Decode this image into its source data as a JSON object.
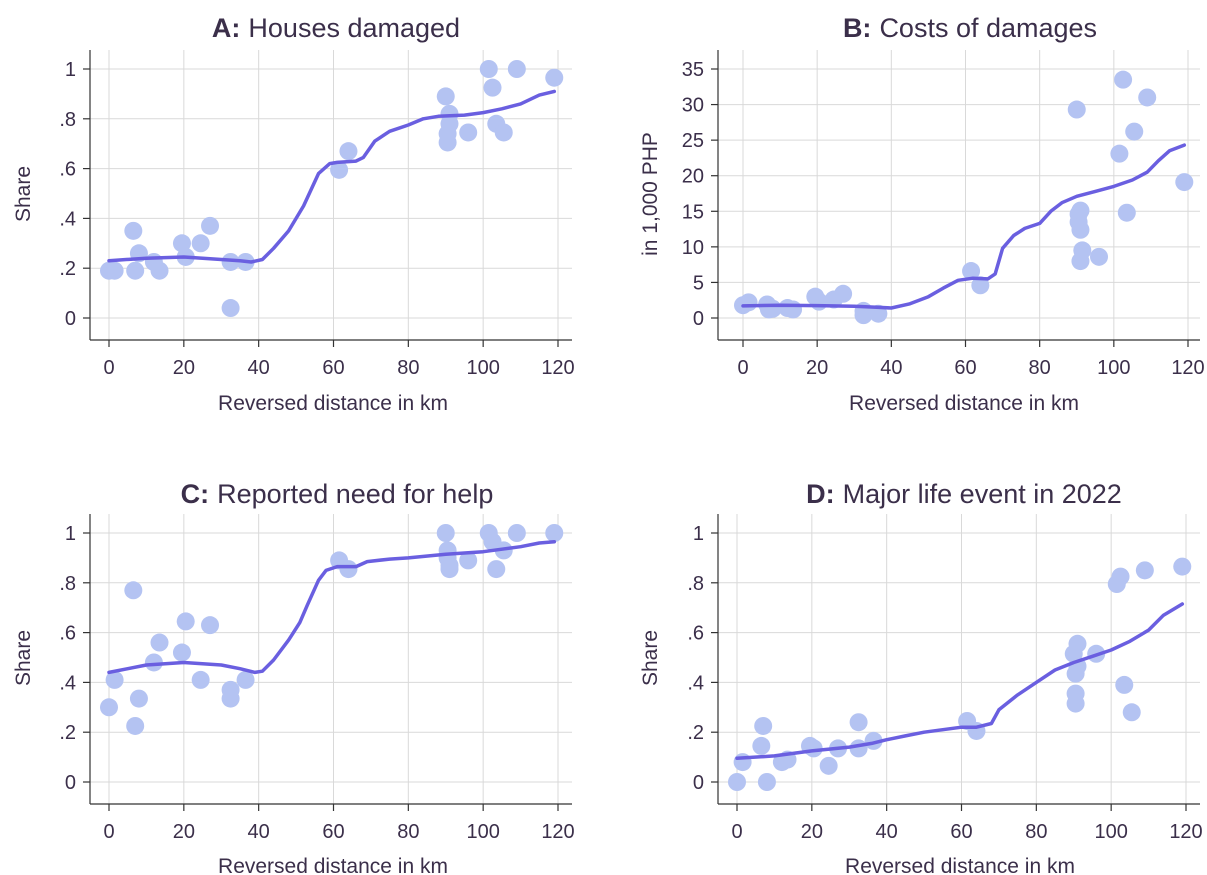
{
  "colors": {
    "marker": "#b4c3f2",
    "line": "#6a5fe0",
    "text": "#3b2f4a",
    "grid": "#d9d9d9"
  },
  "chart_data": [
    {
      "id": "A",
      "type": "scatter",
      "title_letter": "A:",
      "title_text": "Houses damaged",
      "xlabel": "Reversed distance in km",
      "ylabel": "Share",
      "xlim": [
        0,
        120
      ],
      "ylim": [
        0,
        1
      ],
      "xticks": [
        0,
        20,
        40,
        60,
        80,
        100,
        120
      ],
      "yticks": [
        0,
        0.2,
        0.4,
        0.6,
        0.8,
        1
      ],
      "ytick_labels": [
        "0",
        ".2",
        ".4",
        ".6",
        ".8",
        "1"
      ],
      "grid": true,
      "points": [
        [
          0,
          0.19
        ],
        [
          1.5,
          0.19
        ],
        [
          6.5,
          0.35
        ],
        [
          7,
          0.19
        ],
        [
          8,
          0.26
        ],
        [
          12,
          0.225
        ],
        [
          13.5,
          0.19
        ],
        [
          19.5,
          0.3
        ],
        [
          20.5,
          0.245
        ],
        [
          24.5,
          0.3
        ],
        [
          27,
          0.37
        ],
        [
          32.5,
          0.225
        ],
        [
          32.5,
          0.04
        ],
        [
          36.5,
          0.225
        ],
        [
          61.5,
          0.595
        ],
        [
          64,
          0.67
        ],
        [
          90,
          0.89
        ],
        [
          90.5,
          0.74
        ],
        [
          90.5,
          0.705
        ],
        [
          91,
          0.82
        ],
        [
          91,
          0.78
        ],
        [
          96,
          0.745
        ],
        [
          101.5,
          1.0
        ],
        [
          102.5,
          0.925
        ],
        [
          103.5,
          0.78
        ],
        [
          105.5,
          0.745
        ],
        [
          109,
          1.0
        ],
        [
          119,
          0.965
        ]
      ],
      "fit_line": [
        [
          0,
          0.23
        ],
        [
          10,
          0.24
        ],
        [
          20,
          0.245
        ],
        [
          30,
          0.235
        ],
        [
          35,
          0.23
        ],
        [
          38,
          0.225
        ],
        [
          41,
          0.235
        ],
        [
          44,
          0.28
        ],
        [
          48,
          0.35
        ],
        [
          52,
          0.45
        ],
        [
          56,
          0.58
        ],
        [
          59,
          0.62
        ],
        [
          61,
          0.625
        ],
        [
          66,
          0.63
        ],
        [
          68,
          0.645
        ],
        [
          71,
          0.71
        ],
        [
          75,
          0.75
        ],
        [
          80,
          0.775
        ],
        [
          84,
          0.8
        ],
        [
          88,
          0.81
        ],
        [
          95,
          0.815
        ],
        [
          100,
          0.825
        ],
        [
          105,
          0.84
        ],
        [
          110,
          0.86
        ],
        [
          115,
          0.895
        ],
        [
          119,
          0.91
        ]
      ]
    },
    {
      "id": "B",
      "type": "scatter",
      "title_letter": "B:",
      "title_text": "Costs of damages",
      "xlabel": "Reversed distance in km",
      "ylabel": "in 1,000 PHP",
      "xlim": [
        0,
        120
      ],
      "ylim": [
        0,
        35
      ],
      "xticks": [
        0,
        20,
        40,
        60,
        80,
        100,
        120
      ],
      "yticks": [
        0,
        5,
        10,
        15,
        20,
        25,
        30,
        35
      ],
      "ytick_labels": [
        "0",
        "5",
        "10",
        "15",
        "20",
        "25",
        "30",
        "35"
      ],
      "grid": true,
      "points": [
        [
          0,
          1.8
        ],
        [
          1.5,
          2.2
        ],
        [
          6.5,
          1.9
        ],
        [
          7,
          1.2
        ],
        [
          8,
          1.3
        ],
        [
          12,
          1.4
        ],
        [
          13.5,
          1.2
        ],
        [
          19.5,
          3.0
        ],
        [
          20.5,
          2.3
        ],
        [
          24.5,
          2.6
        ],
        [
          27,
          3.4
        ],
        [
          32.5,
          1.0
        ],
        [
          32.5,
          0.4
        ],
        [
          36.5,
          0.6
        ],
        [
          61.5,
          6.6
        ],
        [
          64,
          4.6
        ],
        [
          90,
          29.3
        ],
        [
          90.5,
          14.6
        ],
        [
          90.5,
          13.5
        ],
        [
          91,
          12.4
        ],
        [
          91,
          15.1
        ],
        [
          91,
          8.0
        ],
        [
          91.5,
          9.5
        ],
        [
          96,
          8.6
        ],
        [
          101.5,
          23.1
        ],
        [
          102.5,
          33.5
        ],
        [
          103.5,
          14.8
        ],
        [
          105.5,
          26.2
        ],
        [
          109,
          31.0
        ],
        [
          119,
          19.1
        ]
      ],
      "fit_line": [
        [
          0,
          1.7
        ],
        [
          10,
          1.8
        ],
        [
          20,
          1.75
        ],
        [
          30,
          1.65
        ],
        [
          36,
          1.5
        ],
        [
          40,
          1.4
        ],
        [
          45,
          2.0
        ],
        [
          50,
          3.0
        ],
        [
          54,
          4.2
        ],
        [
          58,
          5.3
        ],
        [
          62,
          5.6
        ],
        [
          66,
          5.5
        ],
        [
          68,
          6.2
        ],
        [
          70,
          9.8
        ],
        [
          73,
          11.6
        ],
        [
          76,
          12.6
        ],
        [
          80,
          13.3
        ],
        [
          83,
          15.0
        ],
        [
          86,
          16.2
        ],
        [
          90,
          17.1
        ],
        [
          95,
          17.8
        ],
        [
          100,
          18.5
        ],
        [
          105,
          19.4
        ],
        [
          109,
          20.5
        ],
        [
          112,
          22.1
        ],
        [
          115,
          23.5
        ],
        [
          119,
          24.3
        ]
      ]
    },
    {
      "id": "C",
      "type": "scatter",
      "title_letter": "C:",
      "title_text": "Reported need for help",
      "xlabel": "Reversed distance in km",
      "ylabel": "Share",
      "xlim": [
        0,
        120
      ],
      "ylim": [
        0,
        1
      ],
      "xticks": [
        0,
        20,
        40,
        60,
        80,
        100,
        120
      ],
      "yticks": [
        0,
        0.2,
        0.4,
        0.6,
        0.8,
        1
      ],
      "ytick_labels": [
        "0",
        ".2",
        ".4",
        ".6",
        ".8",
        "1"
      ],
      "grid": true,
      "points": [
        [
          0,
          0.3
        ],
        [
          1.5,
          0.41
        ],
        [
          6.5,
          0.77
        ],
        [
          7,
          0.225
        ],
        [
          8,
          0.335
        ],
        [
          12,
          0.48
        ],
        [
          13.5,
          0.56
        ],
        [
          19.5,
          0.52
        ],
        [
          20.5,
          0.645
        ],
        [
          24.5,
          0.41
        ],
        [
          27,
          0.63
        ],
        [
          32.5,
          0.37
        ],
        [
          32.5,
          0.335
        ],
        [
          36.5,
          0.41
        ],
        [
          61.5,
          0.89
        ],
        [
          64,
          0.855
        ],
        [
          90,
          1.0
        ],
        [
          90.5,
          0.93
        ],
        [
          90.5,
          0.9
        ],
        [
          91,
          0.87
        ],
        [
          91,
          0.855
        ],
        [
          96,
          0.89
        ],
        [
          101.5,
          1.0
        ],
        [
          102.5,
          0.965
        ],
        [
          103.5,
          0.855
        ],
        [
          105.5,
          0.93
        ],
        [
          109,
          1.0
        ],
        [
          119,
          1.0
        ]
      ],
      "fit_line": [
        [
          0,
          0.44
        ],
        [
          5,
          0.455
        ],
        [
          10,
          0.47
        ],
        [
          20,
          0.48
        ],
        [
          30,
          0.47
        ],
        [
          35,
          0.455
        ],
        [
          39,
          0.44
        ],
        [
          41,
          0.445
        ],
        [
          44,
          0.49
        ],
        [
          48,
          0.57
        ],
        [
          51,
          0.64
        ],
        [
          53,
          0.71
        ],
        [
          56,
          0.81
        ],
        [
          58,
          0.85
        ],
        [
          61,
          0.865
        ],
        [
          66,
          0.865
        ],
        [
          69,
          0.885
        ],
        [
          75,
          0.895
        ],
        [
          80,
          0.9
        ],
        [
          90,
          0.915
        ],
        [
          100,
          0.925
        ],
        [
          105,
          0.935
        ],
        [
          110,
          0.945
        ],
        [
          115,
          0.96
        ],
        [
          119,
          0.965
        ]
      ]
    },
    {
      "id": "D",
      "type": "scatter",
      "title_letter": "D:",
      "title_text": "Major life event in 2022",
      "xlabel": "Reversed distance in km",
      "ylabel": "Share",
      "xlim": [
        0,
        120
      ],
      "ylim": [
        0,
        1
      ],
      "xticks": [
        0,
        20,
        40,
        60,
        80,
        100,
        120
      ],
      "yticks": [
        0,
        0.2,
        0.4,
        0.6,
        0.8,
        1
      ],
      "ytick_labels": [
        "0",
        ".2",
        ".4",
        ".6",
        ".8",
        "1"
      ],
      "grid": true,
      "points": [
        [
          0,
          0.0
        ],
        [
          1.5,
          0.08
        ],
        [
          6.5,
          0.145
        ],
        [
          7,
          0.225
        ],
        [
          8,
          0.0
        ],
        [
          12,
          0.08
        ],
        [
          13.5,
          0.09
        ],
        [
          19.5,
          0.145
        ],
        [
          20.5,
          0.135
        ],
        [
          24.5,
          0.065
        ],
        [
          27,
          0.135
        ],
        [
          32.5,
          0.24
        ],
        [
          32.5,
          0.135
        ],
        [
          36.5,
          0.165
        ],
        [
          61.5,
          0.245
        ],
        [
          64,
          0.205
        ],
        [
          90,
          0.515
        ],
        [
          90.5,
          0.435
        ],
        [
          90.5,
          0.355
        ],
        [
          90.5,
          0.315
        ],
        [
          91,
          0.555
        ],
        [
          91,
          0.465
        ],
        [
          96,
          0.515
        ],
        [
          101.5,
          0.795
        ],
        [
          102.5,
          0.825
        ],
        [
          103.5,
          0.39
        ],
        [
          105.5,
          0.28
        ],
        [
          109,
          0.85
        ],
        [
          119,
          0.865
        ]
      ],
      "fit_line": [
        [
          0,
          0.095
        ],
        [
          10,
          0.105
        ],
        [
          20,
          0.125
        ],
        [
          30,
          0.14
        ],
        [
          36,
          0.155
        ],
        [
          40,
          0.17
        ],
        [
          45,
          0.185
        ],
        [
          50,
          0.2
        ],
        [
          55,
          0.21
        ],
        [
          60,
          0.22
        ],
        [
          64,
          0.22
        ],
        [
          68,
          0.235
        ],
        [
          70,
          0.29
        ],
        [
          75,
          0.35
        ],
        [
          80,
          0.4
        ],
        [
          85,
          0.45
        ],
        [
          90,
          0.48
        ],
        [
          95,
          0.505
        ],
        [
          100,
          0.53
        ],
        [
          105,
          0.565
        ],
        [
          110,
          0.61
        ],
        [
          114,
          0.67
        ],
        [
          119,
          0.715
        ]
      ]
    }
  ]
}
